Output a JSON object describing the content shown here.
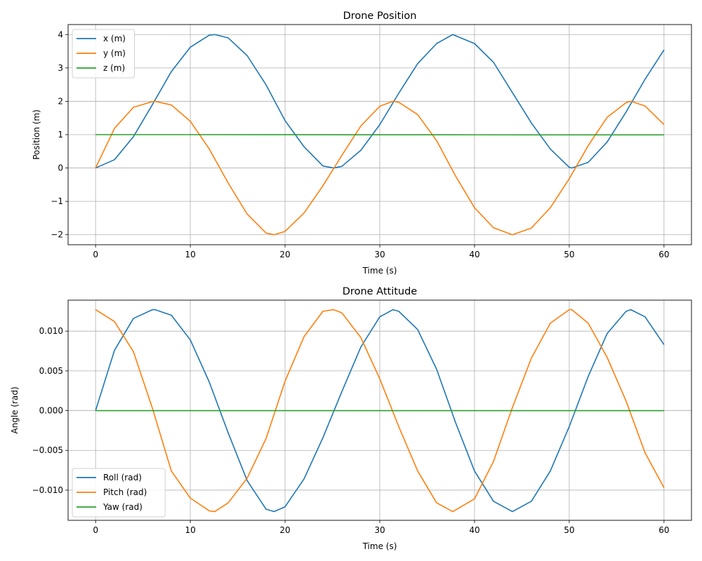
{
  "chart_data": [
    {
      "type": "line",
      "title": "Drone Position",
      "xlabel": "Time (s)",
      "ylabel": "Position (m)",
      "xlim": [
        -2.9,
        62.9
      ],
      "ylim": [
        -2.3,
        4.3
      ],
      "xticks": [
        0,
        10,
        20,
        30,
        40,
        50,
        60
      ],
      "xtick_labels": [
        "0",
        "10",
        "20",
        "30",
        "40",
        "50",
        "60"
      ],
      "yticks": [
        -2,
        -1,
        0,
        1,
        2,
        3,
        4
      ],
      "ytick_labels": [
        "−2",
        "−1",
        "0",
        "1",
        "2",
        "3",
        "4"
      ],
      "grid": true,
      "legend_position": "top-left",
      "series": [
        {
          "name": "x (m)",
          "color": "#1f77b4",
          "x": [
            0,
            2,
            4,
            6,
            8,
            10,
            12,
            12.57,
            14,
            16,
            18,
            20,
            22,
            24,
            25.13,
            26,
            28,
            30,
            32,
            34,
            36,
            37.7,
            40,
            42,
            44,
            46,
            48,
            50,
            50.27,
            52,
            54,
            56,
            58,
            60
          ],
          "y": [
            0,
            0.25,
            0.94,
            1.9,
            2.89,
            3.62,
            3.98,
            4.0,
            3.9,
            3.37,
            2.49,
            1.42,
            0.64,
            0.06,
            0.0,
            0.05,
            0.53,
            1.3,
            2.24,
            3.13,
            3.73,
            4.0,
            3.73,
            3.17,
            2.26,
            1.35,
            0.57,
            0.02,
            0.0,
            0.17,
            0.78,
            1.68,
            2.66,
            3.54
          ]
        },
        {
          "name": "y (m)",
          "color": "#ff7f0e",
          "x": [
            0,
            2,
            4,
            6,
            6.28,
            8,
            10,
            12,
            14,
            16,
            18,
            18.85,
            20,
            22,
            24,
            26,
            28,
            30,
            31.4,
            32,
            34,
            36,
            38,
            40,
            42,
            44,
            44,
            46,
            48,
            50,
            52,
            54,
            56,
            56.5,
            58,
            60
          ],
          "y": [
            0,
            1.19,
            1.82,
            1.99,
            2.0,
            1.89,
            1.4,
            0.57,
            -0.45,
            -1.38,
            -1.95,
            -2.0,
            -1.9,
            -1.35,
            -0.53,
            0.38,
            1.26,
            1.85,
            2.0,
            1.97,
            1.6,
            0.82,
            -0.24,
            -1.19,
            -1.79,
            -2.0,
            -2.0,
            -1.8,
            -1.19,
            -0.32,
            0.67,
            1.52,
            1.96,
            2.0,
            1.86,
            1.3
          ]
        },
        {
          "name": "z (m)",
          "color": "#2ca02c",
          "x": [
            0,
            10,
            20,
            30,
            40,
            50,
            60
          ],
          "y": [
            1.0,
            1.0,
            0.998,
            0.996,
            0.995,
            0.994,
            0.993
          ]
        }
      ]
    },
    {
      "type": "line",
      "title": "Drone Attitude",
      "xlabel": "Time (s)",
      "ylabel": "Angle (rad)",
      "xlim": [
        -2.9,
        62.9
      ],
      "ylim": [
        -0.0138,
        0.0139
      ],
      "xticks": [
        0,
        10,
        20,
        30,
        40,
        50,
        60
      ],
      "xtick_labels": [
        "0",
        "10",
        "20",
        "30",
        "40",
        "50",
        "60"
      ],
      "yticks": [
        -0.01,
        -0.005,
        0.0,
        0.005,
        0.01
      ],
      "ytick_labels": [
        "−0.010",
        "−0.005",
        "0.000",
        "0.005",
        "0.010"
      ],
      "grid": true,
      "legend_position": "bottom-left",
      "series": [
        {
          "name": "Roll (rad)",
          "color": "#1f77b4",
          "x": [
            0,
            2,
            4,
            6,
            6.28,
            8,
            10,
            12,
            14,
            16,
            18,
            18.85,
            20,
            22,
            24,
            26,
            28,
            30,
            31.4,
            32,
            34,
            36,
            38,
            40,
            42,
            44,
            46,
            48,
            50,
            52,
            54,
            56,
            56.5,
            58,
            60
          ],
          "y": [
            0,
            0.0076,
            0.0116,
            0.0127,
            0.0127,
            0.012,
            0.0089,
            0.0036,
            -0.0028,
            -0.0088,
            -0.0124,
            -0.0127,
            -0.0121,
            -0.0086,
            -0.0034,
            0.0024,
            0.008,
            0.0118,
            0.0127,
            0.0125,
            0.0102,
            0.0052,
            -0.0015,
            -0.0076,
            -0.0114,
            -0.0127,
            -0.0114,
            -0.0076,
            -0.002,
            0.0043,
            0.0097,
            0.0125,
            0.0127,
            0.0118,
            0.0083
          ]
        },
        {
          "name": "Pitch (rad)",
          "color": "#ff7f0e",
          "x": [
            0,
            2,
            4,
            6,
            8,
            10,
            12,
            12.57,
            14,
            16,
            18,
            20,
            22,
            24,
            25.13,
            26,
            28,
            30,
            32,
            34,
            36,
            37.7,
            40,
            42,
            44,
            46,
            48,
            50,
            50.27,
            52,
            54,
            56,
            58,
            60
          ],
          "y": [
            0.0127,
            0.0112,
            0.0074,
            0.0003,
            -0.0076,
            -0.011,
            -0.0126,
            -0.0127,
            -0.0116,
            -0.0085,
            -0.0035,
            0.0037,
            0.0093,
            0.0125,
            0.0127,
            0.0123,
            0.0092,
            0.004,
            -0.002,
            -0.0076,
            -0.0116,
            -0.0127,
            -0.0111,
            -0.0064,
            0.0004,
            0.0066,
            0.011,
            0.0127,
            0.0127,
            0.011,
            0.0067,
            0.0012,
            -0.0053,
            -0.0097
          ]
        },
        {
          "name": "Yaw (rad)",
          "color": "#2ca02c",
          "x": [
            0,
            60
          ],
          "y": [
            0,
            0
          ]
        }
      ]
    }
  ]
}
